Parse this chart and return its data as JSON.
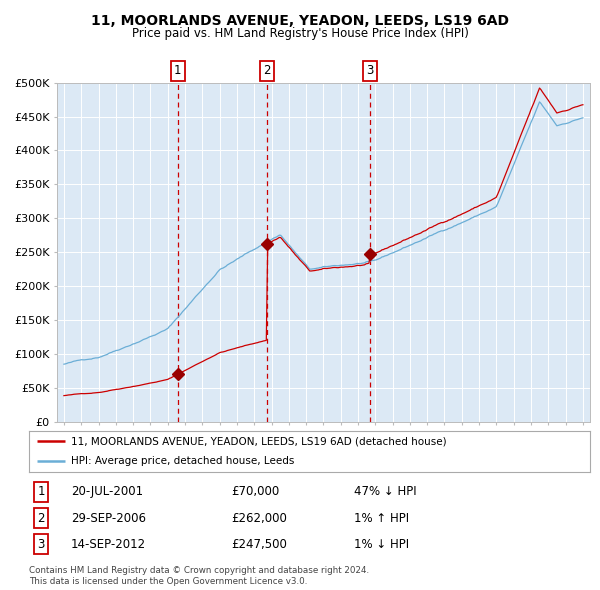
{
  "title1": "11, MOORLANDS AVENUE, YEADON, LEEDS, LS19 6AD",
  "title2": "Price paid vs. HM Land Registry's House Price Index (HPI)",
  "background_color": "#dce9f5",
  "grid_color": "#ffffff",
  "hpi_line_color": "#6baed6",
  "price_line_color": "#cc0000",
  "marker_color": "#990000",
  "dashed_line_color": "#cc0000",
  "transactions": [
    {
      "label": "1",
      "t": 2001.583,
      "price": 70000
    },
    {
      "label": "2",
      "t": 2006.75,
      "price": 262000
    },
    {
      "label": "3",
      "t": 2012.708,
      "price": 247500
    }
  ],
  "legend_entries": [
    "11, MOORLANDS AVENUE, YEADON, LEEDS, LS19 6AD (detached house)",
    "HPI: Average price, detached house, Leeds"
  ],
  "table_rows": [
    {
      "num": "1",
      "date": "20-JUL-2001",
      "price": "£70,000",
      "hpi": "47% ↓ HPI"
    },
    {
      "num": "2",
      "date": "29-SEP-2006",
      "price": "£262,000",
      "hpi": "1% ↑ HPI"
    },
    {
      "num": "3",
      "date": "14-SEP-2012",
      "price": "£247,500",
      "hpi": "1% ↓ HPI"
    }
  ],
  "footer": "Contains HM Land Registry data © Crown copyright and database right 2024.\nThis data is licensed under the Open Government Licence v3.0.",
  "ylim": [
    0,
    500000
  ],
  "yticks": [
    0,
    50000,
    100000,
    150000,
    200000,
    250000,
    300000,
    350000,
    400000,
    450000,
    500000
  ],
  "ytick_labels": [
    "£0",
    "£50K",
    "£100K",
    "£150K",
    "£200K",
    "£250K",
    "£300K",
    "£350K",
    "£400K",
    "£450K",
    "£500K"
  ],
  "xlim_start": 1994.6,
  "xlim_end": 2025.4,
  "xticks": [
    1995,
    1996,
    1997,
    1998,
    1999,
    2000,
    2001,
    2002,
    2003,
    2004,
    2005,
    2006,
    2007,
    2008,
    2009,
    2010,
    2011,
    2012,
    2013,
    2014,
    2015,
    2016,
    2017,
    2018,
    2019,
    2020,
    2021,
    2022,
    2023,
    2024,
    2025
  ]
}
